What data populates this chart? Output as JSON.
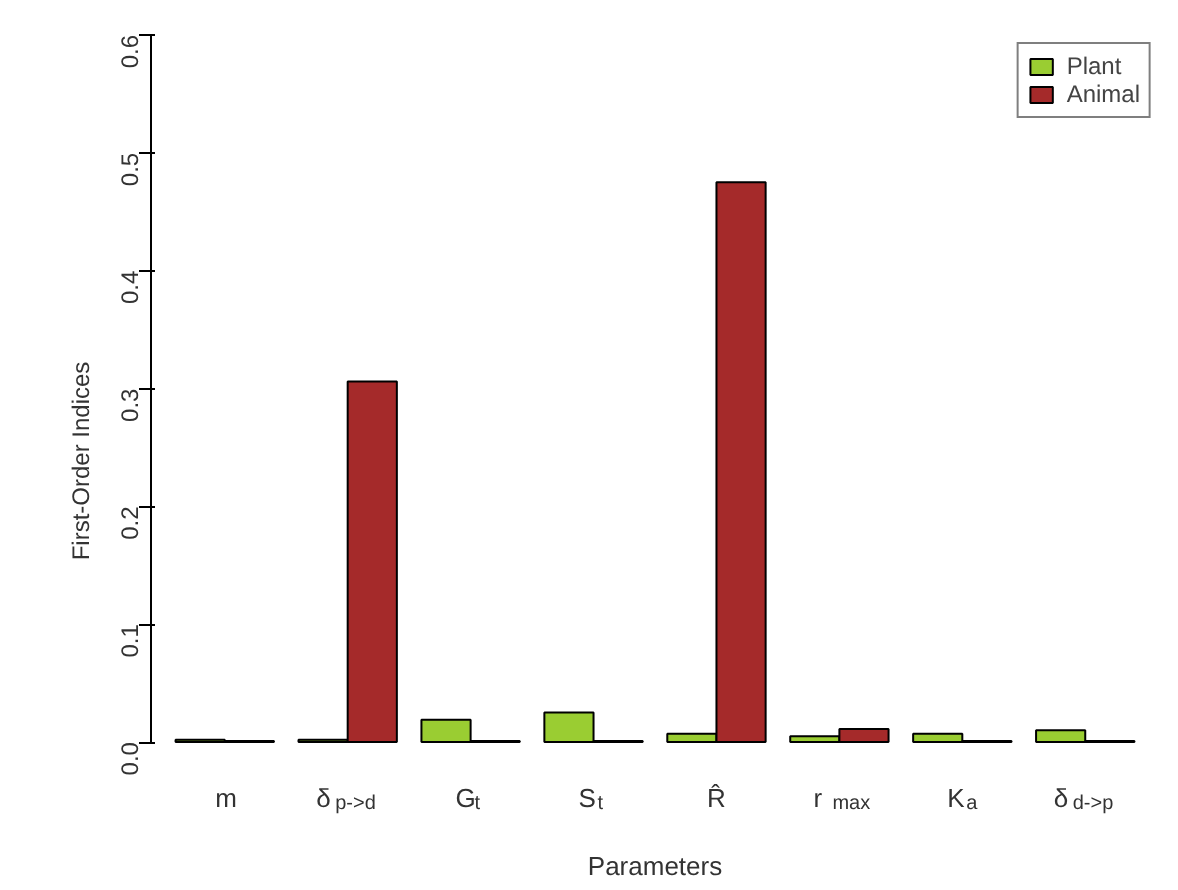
{
  "chart_data": {
    "type": "bar",
    "xlabel": "Parameters",
    "ylabel": "First-Order Indices",
    "categories": [
      "m",
      "δ$_{p->d}$",
      "G$_{t}$",
      "S$_{t}$",
      "R̂",
      "r$_{max}$",
      "K$_{a}$",
      "δ$_{d->p}$"
    ],
    "series": [
      {
        "name": "Plant",
        "color": "#9acd32",
        "values": [
          0.002,
          0.002,
          0.019,
          0.025,
          0.007,
          0.005,
          0.007,
          0.01
        ]
      },
      {
        "name": "Animal",
        "color": "#a52a2a",
        "values": [
          0.001,
          0.306,
          0.001,
          0.001,
          0.475,
          0.011,
          0.001,
          0.001
        ]
      }
    ],
    "ylim": [
      0,
      0.6
    ],
    "yticks": [
      {
        "value": 0,
        "label": "0.0"
      },
      0.1,
      0.2,
      0.3,
      0.4,
      0.5,
      0.6
    ],
    "grid": false,
    "legend": "top right"
  }
}
